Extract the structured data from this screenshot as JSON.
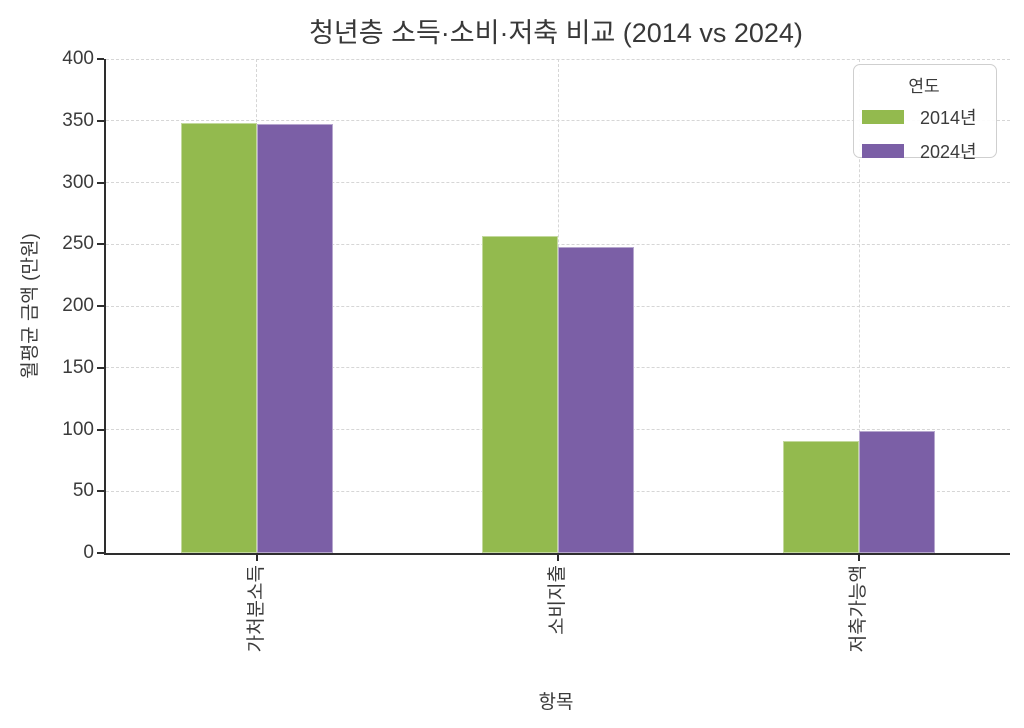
{
  "chart_data": {
    "type": "bar",
    "title": "청년층 소득·소비·저축 비교 (2014 vs 2024)",
    "xlabel": "항목",
    "ylabel": "월평균 금액 (만원)",
    "categories": [
      "가처분소득",
      "소비지출",
      "저축가능액"
    ],
    "series": [
      {
        "name": "2014년",
        "color": "#93ba4e",
        "values": [
          348,
          257,
          91
        ]
      },
      {
        "name": "2024년",
        "color": "#7b5fa6",
        "values": [
          347,
          248,
          99
        ]
      }
    ],
    "ylim": [
      0,
      400
    ],
    "yticks": [
      0,
      50,
      100,
      150,
      200,
      250,
      300,
      350,
      400
    ],
    "grid": "both, dashed, light-gray",
    "legend": {
      "title": "연도",
      "position": "upper-right"
    },
    "colors": {
      "background": "#ffffff",
      "spine": "#2e2e2e",
      "gridline": "#d6d6d6",
      "text": "#3b3b3b",
      "series_2014": "#93ba4e",
      "series_2024": "#7b5fa6"
    }
  }
}
